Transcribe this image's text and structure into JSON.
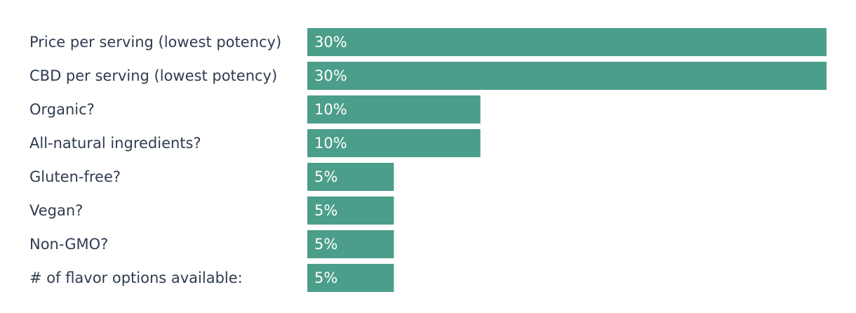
{
  "chart_data": {
    "type": "bar",
    "orientation": "horizontal",
    "categories": [
      "Price per serving (lowest potency)",
      "CBD per serving (lowest potency)",
      "Organic?",
      "All-natural ingredients?",
      "Gluten-free?",
      "Vegan?",
      "Non-GMO?",
      "# of flavor options available:"
    ],
    "values": [
      30,
      30,
      10,
      10,
      5,
      5,
      5,
      5
    ],
    "value_labels": [
      "30%",
      "30%",
      "10%",
      "10%",
      "5%",
      "5%",
      "5%",
      "5%"
    ],
    "color": "#4b9e8a"
  }
}
